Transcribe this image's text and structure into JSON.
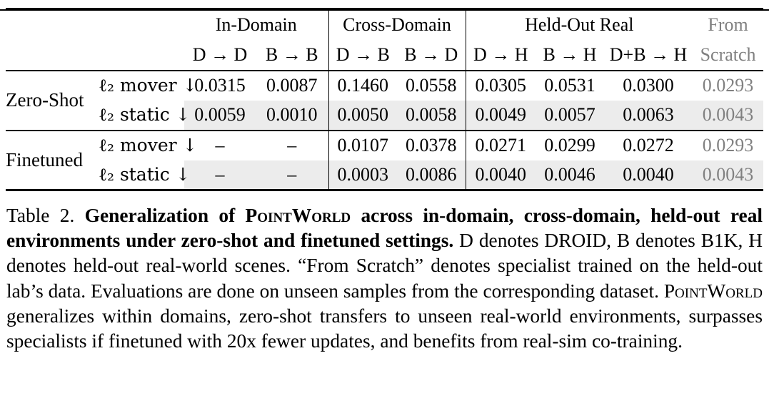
{
  "colors": {
    "muted_text": "#808080",
    "row_shade": "#ececec"
  },
  "table": {
    "col_groups": {
      "in_domain": "In-Domain",
      "cross_domain": "Cross-Domain",
      "held_out_real": "Held-Out Real",
      "from_line1": "From",
      "from_line2": "Scratch"
    },
    "sub_headers": [
      "D → D",
      "B → B",
      "D → B",
      "B → D",
      "D → H",
      "B → H",
      "D+B → H"
    ],
    "row_groups": [
      {
        "label": "Zero-Shot",
        "rows": [
          {
            "metric": "ℓ₂ mover ↓",
            "values": [
              "0.0315",
              "0.0087",
              "0.1460",
              "0.0558",
              "0.0305",
              "0.0531",
              "0.0300",
              "0.0293"
            ]
          },
          {
            "metric": "ℓ₂ static ↓",
            "values": [
              "0.0059",
              "0.0010",
              "0.0050",
              "0.0058",
              "0.0049",
              "0.0057",
              "0.0063",
              "0.0043"
            ]
          }
        ]
      },
      {
        "label": "Finetuned",
        "rows": [
          {
            "metric": "ℓ₂ mover ↓",
            "values": [
              "–",
              "–",
              "0.0107",
              "0.0378",
              "0.0271",
              "0.0299",
              "0.0272",
              "0.0293"
            ]
          },
          {
            "metric": "ℓ₂ static ↓",
            "values": [
              "–",
              "–",
              "0.0003",
              "0.0086",
              "0.0040",
              "0.0046",
              "0.0040",
              "0.0043"
            ]
          }
        ]
      }
    ]
  },
  "caption": {
    "segments": [
      {
        "text": "Table 2. ",
        "bold": false,
        "smallcaps": false
      },
      {
        "text": "Generalization of ",
        "bold": true,
        "smallcaps": false
      },
      {
        "text": "PointWorld",
        "bold": true,
        "smallcaps": true
      },
      {
        "text": " across in-domain, cross-domain, held-out real environments under zero-shot and finetuned settings. ",
        "bold": true,
        "smallcaps": false
      },
      {
        "text": "D denotes DROID, B denotes B1K, H denotes held-out real-world scenes. “From Scratch” denotes specialist trained on the held-out lab’s data. Evaluations are done on unseen samples from the corresponding dataset. ",
        "bold": false,
        "smallcaps": false
      },
      {
        "text": "PointWorld",
        "bold": false,
        "smallcaps": true
      },
      {
        "text": " generalizes within domains, zero-shot transfers to unseen real-world environments, surpasses specialists if finetuned with 20x fewer updates, and benefits from real-sim co-training.",
        "bold": false,
        "smallcaps": false
      }
    ]
  }
}
